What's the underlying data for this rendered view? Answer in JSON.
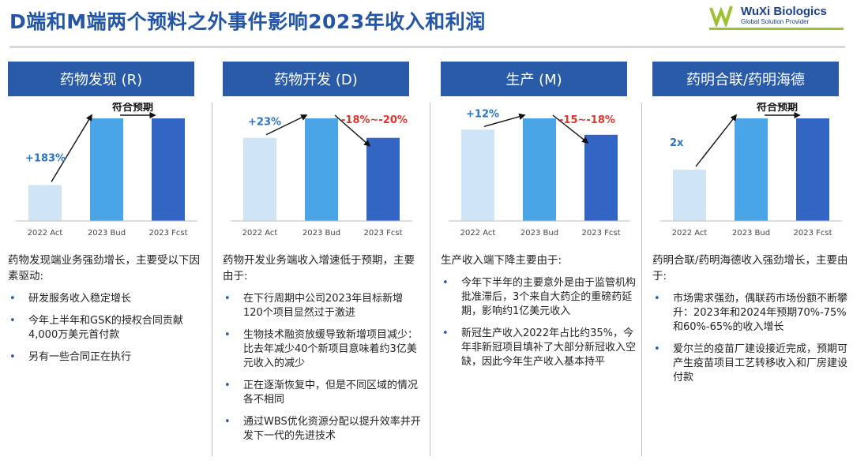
{
  "title": "D端和M端两个预料之外事件影响2023年收入和利润",
  "logo": {
    "name": "WuXi Biologics",
    "sub": "Global Solution Provider"
  },
  "colors": {
    "header": "#2a5ba8",
    "bar_light": "#cfe5f6",
    "bar_mid": "#4aa5e6",
    "bar_dark": "#3366c4",
    "up": "#2a74c8",
    "down": "#e0342d"
  },
  "columns": [
    {
      "header": "药物发现 (R)",
      "chart": {
        "labels": [
          "2022 Act",
          "2023 Bud",
          "2023 Fcst"
        ],
        "values": [
          0.35,
          1.0,
          1.0
        ],
        "growth": "+183%",
        "forecast": "符合预期"
      },
      "lead": "药物发现端业务强劲增长，主要受以下因素驱动:",
      "bullets": [
        "研发服务收入稳定增长",
        "今年上半年和GSK的授权合同贡献4,000万美元首付款",
        "另有一些合同正在执行"
      ]
    },
    {
      "header": "药物开发 (D)",
      "chart": {
        "labels": [
          "2022 Act",
          "2023 Bud",
          "2023 Fcst"
        ],
        "values": [
          0.81,
          1.0,
          0.81
        ],
        "growth": "+23%",
        "forecast": "-18%~-20%"
      },
      "lead": "药物开发业务端收入增速低于预期，主要由于:",
      "bullets": [
        "在下行周期中公司2023年目标新增120个项目显然过于激进",
        "生物技术融资放缓导致新增项目减少：比去年减少40个新项目意味着约3亿美元收入的减少",
        "正在逐渐恢复中，但是不同区域的情况各不相同",
        "通过WBS优化资源分配以提升效率并开发下一代的先进技术"
      ]
    },
    {
      "header": "生产 (M)",
      "chart": {
        "labels": [
          "2022 Act",
          "2023 Bud",
          "2023 Fcst"
        ],
        "values": [
          0.89,
          1.0,
          0.84
        ],
        "growth": "+12%",
        "forecast": "-15~-18%"
      },
      "lead": "生产收入端下降主要由于:",
      "bullets": [
        "今年下半年的主要意外是由于监管机构批准滞后，3个来自大药企的重磅药延期，影响约1亿美元收入",
        "新冠生产收入2022年占比约35%，今年非新冠项目填补了大部分新冠收入空缺，因此今年生产收入基本持平"
      ]
    },
    {
      "header": "药明合联/药明海德",
      "chart": {
        "labels": [
          "2022 Act",
          "2023 Bud",
          "2023 Fcst"
        ],
        "values": [
          0.5,
          1.0,
          1.0
        ],
        "growth": "2x",
        "forecast": "符合预期"
      },
      "lead": "药明合联/药明海德收入强劲增长，主要由于:",
      "bullets": [
        "市场需求强劲，偶联药市场份额不断攀升：2023年和2024年预期70%-75%和60%-65%的收入增长",
        "爱尔兰的疫苗厂建设接近完成，预期可产生疫苗项目工艺转移收入和厂房建设付款"
      ]
    }
  ]
}
